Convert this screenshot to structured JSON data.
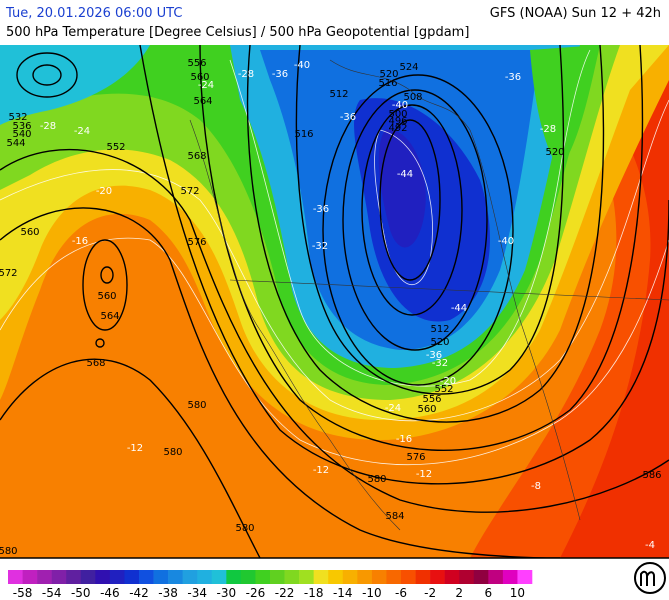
{
  "header": {
    "datetime": "Tue, 20.01.2026 06:00 UTC",
    "model": "GFS (NOAA) Sun 12 + 42h",
    "subtitle": "500 hPa Temperature [Degree Celsius] / 500 hPa Geopotential [gpdam]"
  },
  "colorbar": {
    "colors": [
      "#e030e0",
      "#c020c0",
      "#a020b0",
      "#8020a8",
      "#6020a0",
      "#4020a0",
      "#3010b0",
      "#2020c0",
      "#1030d0",
      "#1050e0",
      "#1070e0",
      "#1888e0",
      "#20a0e0",
      "#20b0e0",
      "#20c0d8",
      "#10c840",
      "#20c830",
      "#40d020",
      "#60d020",
      "#80d820",
      "#a0e020",
      "#f0e020",
      "#f8c800",
      "#f8b000",
      "#f89800",
      "#f88000",
      "#f86800",
      "#f85000",
      "#f03000",
      "#e81010",
      "#d00020",
      "#b00030",
      "#900040",
      "#c00080",
      "#e000c0",
      "#ff40ff"
    ],
    "labels": [
      -58,
      -54,
      -50,
      -46,
      -42,
      -38,
      -34,
      -30,
      -26,
      -22,
      -18,
      -14,
      -10,
      -6,
      -2,
      2,
      6,
      10
    ]
  },
  "contour_labels": [
    "556",
    "560",
    "564",
    "568",
    "572",
    "576",
    "560",
    "572",
    "560",
    "564",
    "568",
    "580",
    "580",
    "580",
    "584",
    "580",
    "580",
    "576",
    "560",
    "556",
    "552",
    "520",
    "512",
    "516",
    "512",
    "520",
    "516",
    "524",
    "508",
    "500",
    "496",
    "492",
    "520",
    "586",
    "532",
    "536",
    "540",
    "544",
    "552"
  ],
  "temperature_labels": [
    "-28",
    "-36",
    "-40",
    "-36",
    "-40",
    "-44",
    "-36",
    "-32",
    "-40",
    "-44",
    "-36",
    "-32",
    "-36",
    "-28",
    "-24",
    "-24",
    "-28",
    "-20",
    "-16",
    "-12",
    "-12",
    "-12",
    "-16",
    "-24",
    "-20",
    "-8",
    "-4"
  ]
}
